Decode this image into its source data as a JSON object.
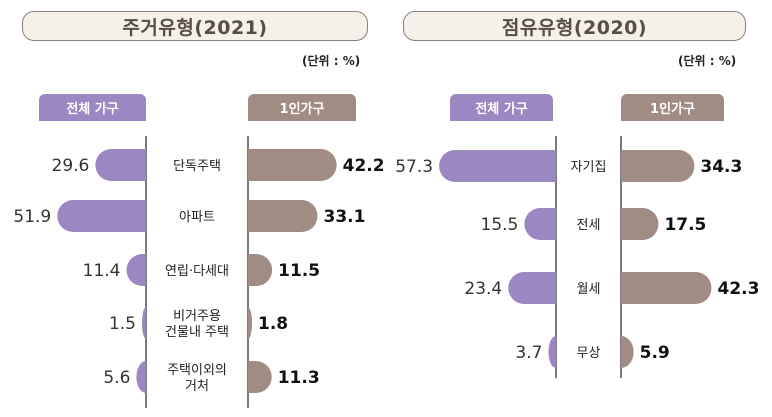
{
  "chart_data": [
    {
      "type": "bar",
      "title": "주거유형(2021)",
      "unit_label": "(단위 : %)",
      "series_headers": [
        "전체 가구",
        "1인가구"
      ],
      "categories": [
        [
          "단독주택"
        ],
        [
          "아파트"
        ],
        [
          "연립·다세대"
        ],
        [
          "비거주용",
          "건물내 주택"
        ],
        [
          "주택이외의",
          "거처"
        ]
      ],
      "series": [
        {
          "name": "전체 가구",
          "values": [
            29.6,
            51.9,
            11.4,
            1.5,
            5.6
          ]
        },
        {
          "name": "1인가구",
          "values": [
            42.2,
            33.1,
            11.5,
            1.8,
            11.3
          ]
        }
      ]
    },
    {
      "type": "bar",
      "title": "점유유형(2020)",
      "unit_label": "(단위 : %)",
      "series_headers": [
        "전체 가구",
        "1인가구"
      ],
      "categories": [
        [
          "자기집"
        ],
        [
          "전세"
        ],
        [
          "월세"
        ],
        [
          "무상"
        ]
      ],
      "series": [
        {
          "name": "전체 가구",
          "values": [
            57.3,
            15.5,
            23.4,
            3.7
          ]
        },
        {
          "name": "1인가구",
          "values": [
            34.3,
            17.5,
            42.3,
            5.9
          ]
        }
      ]
    }
  ],
  "colors": {
    "total": "#9b87c1",
    "single": "#a08c83",
    "divider": "#222222",
    "title_border": "#8c7e78",
    "title_fill": "#f4f0ea",
    "title_text": "#5a4d48"
  }
}
